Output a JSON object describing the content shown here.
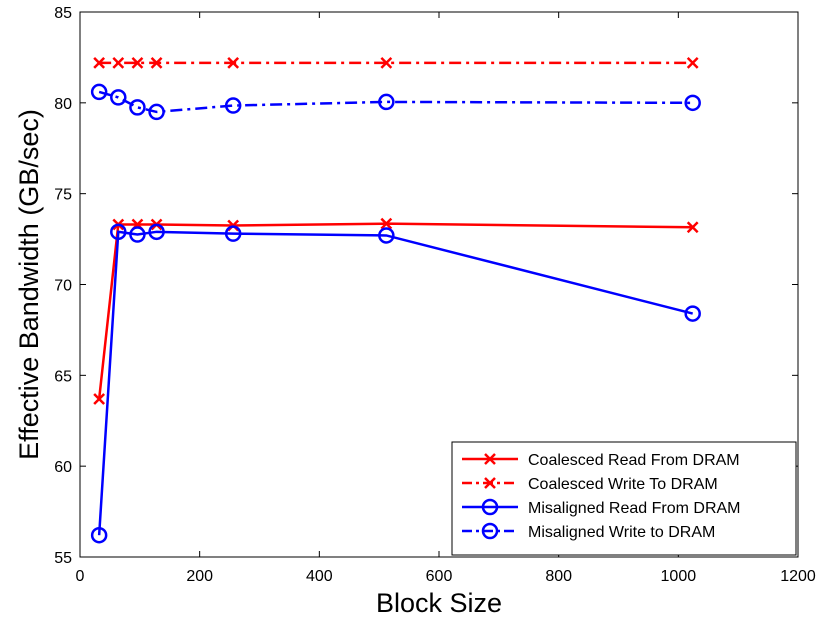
{
  "chart_data": {
    "type": "line",
    "title": "",
    "xlabel": "Block Size",
    "ylabel": "Effective Bandwidth (GB/sec)",
    "xlim": [
      0,
      1200
    ],
    "ylim": [
      55,
      85
    ],
    "x_ticks": [
      0,
      200,
      400,
      600,
      800,
      1000,
      1200
    ],
    "y_ticks": [
      55,
      60,
      65,
      70,
      75,
      80,
      85
    ],
    "grid": false,
    "legend_position": "bottom-right",
    "series": [
      {
        "name": "Coalesced Read From DRAM",
        "color": "#ff0000",
        "line_style": "solid",
        "marker": "x",
        "x": [
          32,
          64,
          96,
          128,
          256,
          512,
          1024
        ],
        "y": [
          63.7,
          73.3,
          73.3,
          73.3,
          73.25,
          73.35,
          73.15
        ]
      },
      {
        "name": "Coalesced Write To DRAM",
        "color": "#ff0000",
        "line_style": "dashdot",
        "marker": "x",
        "x": [
          32,
          64,
          96,
          128,
          256,
          512,
          1024
        ],
        "y": [
          82.2,
          82.2,
          82.2,
          82.2,
          82.2,
          82.2,
          82.2
        ]
      },
      {
        "name": "Misaligned Read From DRAM",
        "color": "#0000ff",
        "line_style": "solid",
        "marker": "o",
        "x": [
          32,
          64,
          96,
          128,
          256,
          512,
          1024
        ],
        "y": [
          56.2,
          72.9,
          72.75,
          72.9,
          72.8,
          72.7,
          68.4
        ]
      },
      {
        "name": "Misaligned Write to DRAM",
        "color": "#0000ff",
        "line_style": "dashdot",
        "marker": "o",
        "x": [
          32,
          64,
          96,
          128,
          256,
          512,
          1024
        ],
        "y": [
          80.6,
          80.3,
          79.75,
          79.5,
          79.85,
          80.05,
          80.0
        ]
      }
    ]
  }
}
